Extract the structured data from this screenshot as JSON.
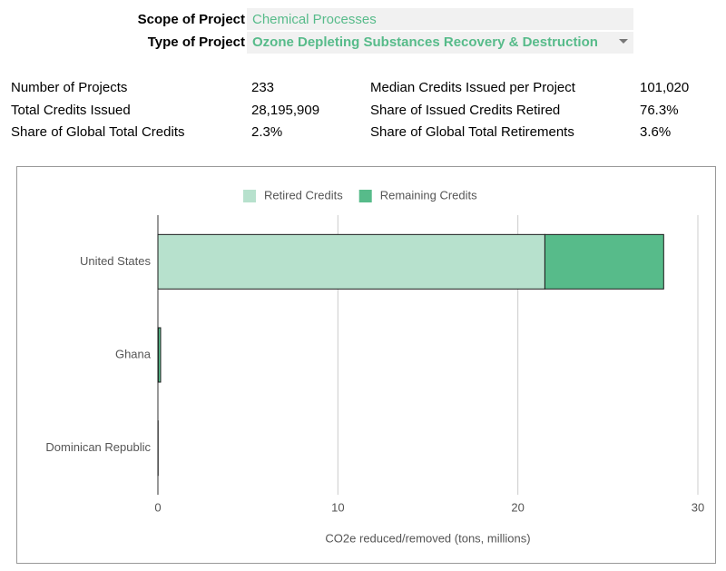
{
  "filters": [
    {
      "label": "Scope of Project",
      "value": "Chemical Processes"
    },
    {
      "label": "Type of Project",
      "value": "Ozone Depleting Substances Recovery & Destruction"
    }
  ],
  "stats": [
    [
      "Number of Projects",
      "233",
      "Median Credits Issued per Project",
      "101,020"
    ],
    [
      "Total Credits Issued",
      "28,195,909",
      "Share of Issued Credits Retired",
      "76.3%"
    ],
    [
      "Share of Global Total Credits",
      "2.3%",
      "Share of Global Total Retirements",
      "3.6%"
    ]
  ],
  "chart_data": {
    "type": "bar",
    "orientation": "horizontal",
    "stacked": true,
    "categories": [
      "United States",
      "Ghana",
      "Dominican Republic"
    ],
    "series": [
      {
        "name": "Retired Credits",
        "color": "#b7e1cd",
        "values": [
          21.5,
          0.02,
          0.005
        ]
      },
      {
        "name": "Remaining Credits",
        "color": "#57bb8a",
        "values": [
          6.6,
          0.13,
          0.005
        ]
      }
    ],
    "xlim": [
      0,
      30
    ],
    "xticks": [
      0,
      10,
      20,
      30
    ],
    "xlabel": "CO2e reduced/removed (tons, millions)",
    "grid": true,
    "legend": "top"
  }
}
